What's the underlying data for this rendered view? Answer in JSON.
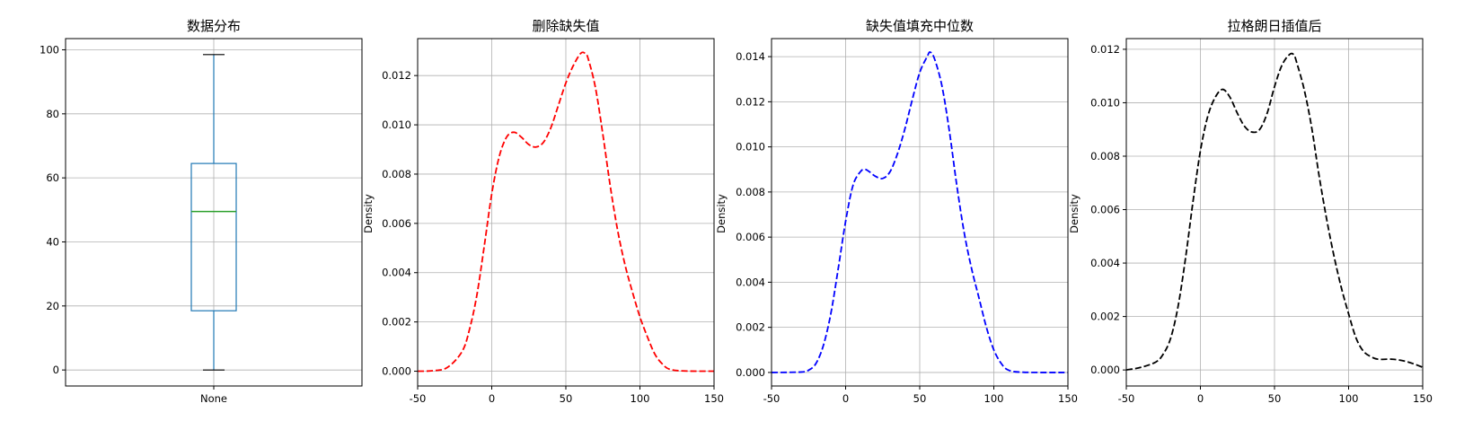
{
  "chart_data": [
    {
      "type": "box",
      "title": "数据分布",
      "xlabel": "",
      "ylabel": "",
      "categories": [
        "None"
      ],
      "box": {
        "min": 0,
        "q1": 18.5,
        "median": 49.5,
        "q3": 64.5,
        "max": 98.5
      },
      "ylim": [
        -5,
        103.5
      ],
      "yticks": [
        0,
        20,
        40,
        60,
        80,
        100
      ],
      "grid": true,
      "colors": {
        "box": "#1f77b4",
        "median": "#2ca02c",
        "caps": "#000000"
      }
    },
    {
      "type": "line",
      "title": "删除缺失值",
      "xlabel": "",
      "ylabel": "Density",
      "xlim": [
        -50,
        150
      ],
      "ylim": [
        -0.0006,
        0.0135
      ],
      "xticks": [
        -50,
        0,
        50,
        100,
        150
      ],
      "yticks": [
        "0.000",
        "0.002",
        "0.004",
        "0.006",
        "0.008",
        "0.010",
        "0.012"
      ],
      "grid": true,
      "series": [
        {
          "color": "#ff0000",
          "style": "dashed",
          "points": [
            [
              -50,
              0
            ],
            [
              -40,
              2e-05
            ],
            [
              -30,
              0.00015
            ],
            [
              -20,
              0.0008
            ],
            [
              -15,
              0.0017
            ],
            [
              -10,
              0.0031
            ],
            [
              -5,
              0.0051
            ],
            [
              0,
              0.0072
            ],
            [
              5,
              0.0087
            ],
            [
              10,
              0.0095
            ],
            [
              15,
              0.0097
            ],
            [
              20,
              0.0095
            ],
            [
              25,
              0.0092
            ],
            [
              30,
              0.0091
            ],
            [
              35,
              0.0093
            ],
            [
              40,
              0.0099
            ],
            [
              45,
              0.0108
            ],
            [
              50,
              0.0117
            ],
            [
              55,
              0.0124
            ],
            [
              60,
              0.0129
            ],
            [
              63,
              0.0129
            ],
            [
              65,
              0.0127
            ],
            [
              70,
              0.0115
            ],
            [
              75,
              0.0096
            ],
            [
              80,
              0.0075
            ],
            [
              85,
              0.0057
            ],
            [
              90,
              0.0043
            ],
            [
              95,
              0.0032
            ],
            [
              100,
              0.0022
            ],
            [
              105,
              0.0014
            ],
            [
              110,
              0.0007
            ],
            [
              115,
              0.0003
            ],
            [
              120,
              8e-05
            ],
            [
              130,
              1e-05
            ],
            [
              150,
              0
            ]
          ]
        }
      ]
    },
    {
      "type": "line",
      "title": "缺失值填充中位数",
      "xlabel": "",
      "ylabel": "Density",
      "xlim": [
        -50,
        150
      ],
      "ylim": [
        -0.0006,
        0.0148
      ],
      "xticks": [
        -50,
        0,
        50,
        100,
        150
      ],
      "yticks": [
        "0.000",
        "0.002",
        "0.004",
        "0.006",
        "0.008",
        "0.010",
        "0.012",
        "0.014"
      ],
      "grid": true,
      "series": [
        {
          "color": "#0000ff",
          "style": "dashed",
          "points": [
            [
              -50,
              0
            ],
            [
              -30,
              2e-05
            ],
            [
              -25,
              0.0001
            ],
            [
              -20,
              0.0004
            ],
            [
              -15,
              0.0012
            ],
            [
              -10,
              0.0026
            ],
            [
              -5,
              0.0046
            ],
            [
              0,
              0.0067
            ],
            [
              5,
              0.0083
            ],
            [
              10,
              0.0089
            ],
            [
              13,
              0.009
            ],
            [
              16,
              0.0089
            ],
            [
              20,
              0.0087
            ],
            [
              25,
              0.0086
            ],
            [
              30,
              0.0089
            ],
            [
              35,
              0.0097
            ],
            [
              40,
              0.0108
            ],
            [
              45,
              0.0121
            ],
            [
              50,
              0.0133
            ],
            [
              55,
              0.014
            ],
            [
              57,
              0.0142
            ],
            [
              60,
              0.0139
            ],
            [
              65,
              0.0127
            ],
            [
              70,
              0.0107
            ],
            [
              75,
              0.0083
            ],
            [
              80,
              0.0062
            ],
            [
              85,
              0.0046
            ],
            [
              90,
              0.0033
            ],
            [
              95,
              0.002
            ],
            [
              100,
              0.001
            ],
            [
              105,
              0.0004
            ],
            [
              110,
              0.0001
            ],
            [
              120,
              1e-05
            ],
            [
              150,
              0
            ]
          ]
        }
      ]
    },
    {
      "type": "line",
      "title": "拉格朗日插值后",
      "xlabel": "",
      "ylabel": "Density",
      "xlim": [
        -50,
        150
      ],
      "ylim": [
        -0.0006,
        0.0124
      ],
      "xticks": [
        -50,
        0,
        50,
        100,
        150
      ],
      "yticks": [
        "0.000",
        "0.002",
        "0.004",
        "0.006",
        "0.008",
        "0.010",
        "0.012"
      ],
      "grid": true,
      "series": [
        {
          "color": "#000000",
          "style": "dashed",
          "points": [
            [
              -50,
              0
            ],
            [
              -40,
              0.0001
            ],
            [
              -30,
              0.0003
            ],
            [
              -25,
              0.0006
            ],
            [
              -20,
              0.0012
            ],
            [
              -15,
              0.0024
            ],
            [
              -10,
              0.0042
            ],
            [
              -5,
              0.0063
            ],
            [
              0,
              0.0082
            ],
            [
              5,
              0.0095
            ],
            [
              10,
              0.0102
            ],
            [
              15,
              0.0105
            ],
            [
              20,
              0.0102
            ],
            [
              25,
              0.0096
            ],
            [
              30,
              0.0091
            ],
            [
              35,
              0.0089
            ],
            [
              40,
              0.009
            ],
            [
              45,
              0.0096
            ],
            [
              50,
              0.0106
            ],
            [
              55,
              0.0114
            ],
            [
              60,
              0.0118
            ],
            [
              63,
              0.0118
            ],
            [
              65,
              0.0115
            ],
            [
              70,
              0.0105
            ],
            [
              75,
              0.0091
            ],
            [
              80,
              0.0073
            ],
            [
              85,
              0.0057
            ],
            [
              90,
              0.0043
            ],
            [
              95,
              0.0031
            ],
            [
              100,
              0.0021
            ],
            [
              105,
              0.0012
            ],
            [
              110,
              0.0007
            ],
            [
              115,
              0.0005
            ],
            [
              120,
              0.0004
            ],
            [
              130,
              0.0004
            ],
            [
              140,
              0.0003
            ],
            [
              150,
              0.0001
            ]
          ]
        }
      ]
    }
  ]
}
